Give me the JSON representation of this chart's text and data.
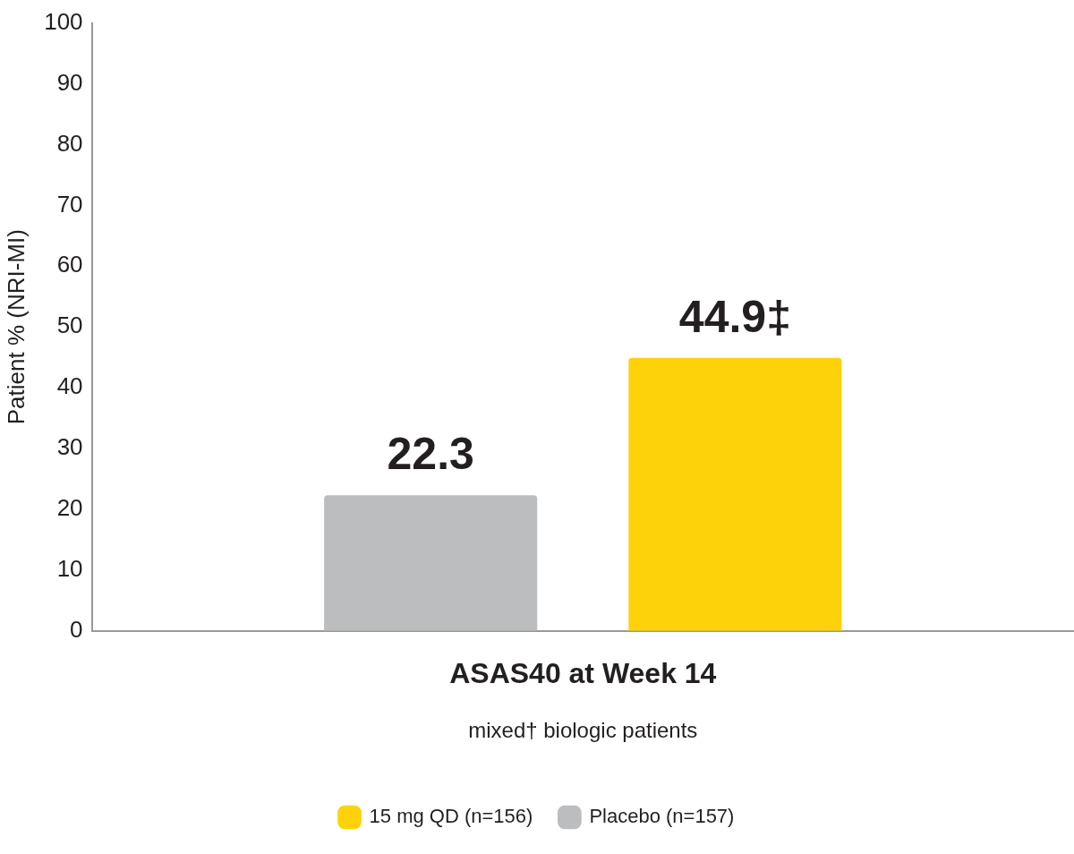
{
  "chart_data": {
    "type": "bar",
    "categories": [
      "ASAS40 at Week 14"
    ],
    "xlabel": "mixed† biologic patients",
    "ylabel": "Patient % (NRI-MI)",
    "series": [
      {
        "name": "Placebo (n=157)",
        "color": "#bcbdbf",
        "values": [
          22.3
        ],
        "value_labels": [
          "22.3"
        ]
      },
      {
        "name": "15 mg QD (n=156)",
        "color": "#fdd20a",
        "values": [
          44.9
        ],
        "value_labels": [
          "44.9‡"
        ]
      }
    ],
    "ylim": [
      0,
      100
    ],
    "yticks": [
      0,
      10,
      20,
      30,
      40,
      50,
      60,
      70,
      80,
      90,
      100
    ],
    "grid": false,
    "legend": "bottom"
  }
}
